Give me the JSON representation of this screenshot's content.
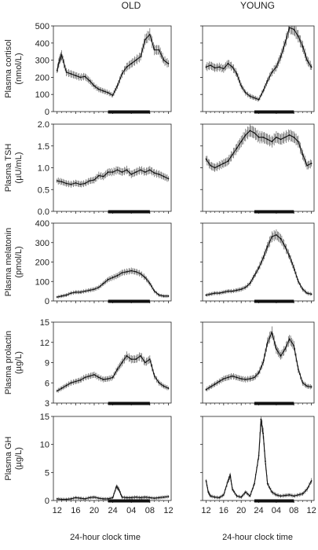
{
  "columns": [
    "OLD",
    "YOUNG"
  ],
  "xlabel": "24-hour clock time",
  "x_ticks": [
    "12",
    "16",
    "20",
    "24",
    "04",
    "08",
    "12"
  ],
  "x_tick_hours": [
    12,
    16,
    20,
    24,
    28,
    32,
    36
  ],
  "sleep_period": [
    23,
    32
  ],
  "chart_data": [
    {
      "type": "line",
      "column": "OLD",
      "ylabel": [
        "Plasma cortisol",
        "(nmol/L)"
      ],
      "ylim": [
        0,
        500
      ],
      "yticks": [
        0,
        100,
        200,
        300,
        400,
        500
      ],
      "ytick_labels": [
        "0",
        "100",
        "200",
        "300",
        "400",
        "500"
      ],
      "x": [
        12,
        12.5,
        13,
        14,
        15,
        16,
        17,
        18,
        19,
        20,
        21,
        22,
        23,
        24,
        25,
        26,
        27,
        28,
        29,
        30,
        31,
        32,
        33,
        34,
        35,
        36
      ],
      "y": [
        240,
        300,
        330,
        230,
        220,
        210,
        200,
        205,
        180,
        150,
        130,
        120,
        110,
        95,
        150,
        220,
        260,
        280,
        300,
        320,
        420,
        450,
        360,
        360,
        300,
        280
      ]
    },
    {
      "type": "line",
      "column": "YOUNG",
      "ylabel": [
        "Plasma cortisol",
        "(nmol/L)"
      ],
      "ylim": [
        0,
        500
      ],
      "yticks": [
        0,
        100,
        200,
        300,
        400,
        500
      ],
      "ytick_labels": [
        "",
        "",
        "",
        "",
        "",
        ""
      ],
      "x": [
        12,
        13,
        14,
        15,
        16,
        17,
        18,
        19,
        20,
        21,
        22,
        23,
        24,
        25,
        26,
        27,
        28,
        29,
        30,
        31,
        32,
        33,
        34,
        35,
        36
      ],
      "y": [
        260,
        270,
        255,
        260,
        250,
        280,
        260,
        220,
        150,
        110,
        90,
        80,
        70,
        120,
        180,
        230,
        260,
        320,
        400,
        490,
        480,
        440,
        380,
        300,
        260
      ]
    },
    {
      "type": "line",
      "column": "OLD",
      "ylabel": [
        "Plasma TSH",
        "(µU/mL)"
      ],
      "ylim": [
        0,
        2
      ],
      "yticks": [
        0,
        0.5,
        1,
        1.5,
        2
      ],
      "ytick_labels": [
        "0.0",
        "0.5",
        "1.0",
        "1.5",
        "2.0"
      ],
      "x": [
        12,
        13,
        14,
        15,
        16,
        17,
        18,
        19,
        20,
        21,
        22,
        23,
        24,
        25,
        26,
        27,
        28,
        29,
        30,
        31,
        32,
        33,
        34,
        35,
        36
      ],
      "y": [
        0.7,
        0.68,
        0.64,
        0.62,
        0.65,
        0.62,
        0.64,
        0.7,
        0.72,
        0.82,
        0.8,
        0.9,
        0.9,
        0.95,
        0.9,
        0.95,
        0.85,
        0.9,
        0.95,
        0.9,
        0.95,
        0.88,
        0.85,
        0.8,
        0.75
      ]
    },
    {
      "type": "line",
      "column": "YOUNG",
      "ylabel": [
        "Plasma TSH",
        "(µU/mL)"
      ],
      "ylim": [
        0,
        2
      ],
      "yticks": [
        0,
        0.5,
        1,
        1.5,
        2
      ],
      "ytick_labels": [
        "",
        "",
        "",
        "",
        ""
      ],
      "x": [
        12,
        13,
        14,
        15,
        16,
        17,
        18,
        19,
        20,
        21,
        22,
        23,
        24,
        25,
        26,
        27,
        28,
        29,
        30,
        31,
        32,
        33,
        34,
        35,
        36
      ],
      "y": [
        1.2,
        1.05,
        1.0,
        1.05,
        1.1,
        1.15,
        1.3,
        1.45,
        1.6,
        1.75,
        1.85,
        1.8,
        1.7,
        1.7,
        1.65,
        1.6,
        1.7,
        1.65,
        1.7,
        1.75,
        1.7,
        1.6,
        1.3,
        1.05,
        1.1
      ]
    },
    {
      "type": "line",
      "column": "OLD",
      "ylabel": [
        "Plasma melatonin",
        "(pmol/L)"
      ],
      "ylim": [
        0,
        400
      ],
      "yticks": [
        0,
        100,
        200,
        300,
        400
      ],
      "ytick_labels": [
        "0",
        "100",
        "200",
        "300",
        "400"
      ],
      "x": [
        12,
        13,
        14,
        15,
        16,
        17,
        18,
        19,
        20,
        21,
        22,
        23,
        24,
        25,
        26,
        27,
        28,
        29,
        30,
        31,
        32,
        33,
        34,
        35,
        36
      ],
      "y": [
        20,
        25,
        30,
        40,
        45,
        45,
        50,
        55,
        60,
        70,
        90,
        110,
        120,
        130,
        145,
        150,
        155,
        150,
        140,
        120,
        90,
        50,
        30,
        25,
        25
      ]
    },
    {
      "type": "line",
      "column": "YOUNG",
      "ylabel": [
        "Plasma melatonin",
        "(pmol/L)"
      ],
      "ylim": [
        0,
        400
      ],
      "yticks": [
        0,
        100,
        200,
        300,
        400
      ],
      "ytick_labels": [
        "",
        "",
        "",
        "",
        ""
      ],
      "x": [
        12,
        13,
        14,
        15,
        16,
        17,
        18,
        19,
        20,
        21,
        22,
        23,
        24,
        25,
        26,
        27,
        28,
        29,
        30,
        31,
        32,
        33,
        34,
        35,
        36
      ],
      "y": [
        30,
        35,
        40,
        40,
        45,
        50,
        50,
        55,
        60,
        70,
        90,
        130,
        170,
        220,
        280,
        330,
        340,
        320,
        280,
        230,
        170,
        100,
        60,
        40,
        35
      ]
    },
    {
      "type": "line",
      "column": "OLD",
      "ylabel": [
        "Plasma prolactin",
        "(µg/L)"
      ],
      "ylim": [
        3,
        15
      ],
      "yticks": [
        3,
        6,
        9,
        12,
        15
      ],
      "ytick_labels": [
        "3",
        "6",
        "9",
        "12",
        "15"
      ],
      "x": [
        12,
        13,
        14,
        15,
        16,
        17,
        18,
        19,
        20,
        21,
        22,
        23,
        24,
        25,
        26,
        27,
        28,
        29,
        30,
        31,
        32,
        33,
        34,
        35,
        36
      ],
      "y": [
        4.8,
        5.2,
        5.6,
        6.0,
        6.2,
        6.4,
        6.8,
        7.0,
        7.2,
        6.8,
        6.5,
        6.6,
        6.8,
        8.0,
        9.0,
        10.0,
        9.5,
        9.5,
        10.0,
        9.0,
        9.5,
        7.0,
        6.0,
        5.5,
        5.2
      ]
    },
    {
      "type": "line",
      "column": "YOUNG",
      "ylabel": [
        "Plasma prolactin",
        "(µg/L)"
      ],
      "ylim": [
        3,
        15
      ],
      "yticks": [
        3,
        6,
        9,
        12,
        15
      ],
      "ytick_labels": [
        "",
        "",
        "",
        "",
        ""
      ],
      "x": [
        12,
        13,
        14,
        15,
        16,
        17,
        18,
        19,
        20,
        21,
        22,
        23,
        24,
        25,
        26,
        27,
        28,
        29,
        30,
        31,
        32,
        33,
        34,
        35,
        36
      ],
      "y": [
        5.0,
        5.4,
        5.8,
        6.2,
        6.6,
        6.8,
        7.0,
        6.8,
        6.6,
        6.5,
        6.6,
        6.8,
        7.5,
        9.0,
        12.0,
        13.5,
        11.0,
        10.0,
        11.0,
        12.5,
        11.5,
        8.0,
        6.0,
        5.5,
        5.4
      ]
    },
    {
      "type": "line",
      "column": "OLD",
      "ylabel": [
        "Plasma GH",
        "(µg/L)"
      ],
      "ylim": [
        0,
        15
      ],
      "yticks": [
        0,
        5,
        10,
        15
      ],
      "ytick_labels": [
        "0",
        "5",
        "10",
        "15"
      ],
      "x": [
        12,
        13,
        14,
        15,
        16,
        17,
        18,
        19,
        20,
        21,
        22,
        23,
        24,
        24.8,
        25.3,
        26,
        27,
        28,
        29,
        30,
        31,
        32,
        33,
        34,
        35,
        36
      ],
      "y": [
        0.3,
        0.2,
        0.2,
        0.3,
        0.5,
        0.4,
        0.3,
        0.5,
        0.6,
        0.4,
        0.3,
        0.3,
        0.5,
        2.5,
        2.0,
        0.6,
        0.5,
        0.5,
        0.6,
        0.5,
        0.6,
        0.5,
        0.4,
        0.5,
        0.6,
        0.7
      ]
    },
    {
      "type": "line",
      "column": "YOUNG",
      "ylabel": [
        "Plasma GH",
        "(µg/L)"
      ],
      "ylim": [
        0,
        15
      ],
      "yticks": [
        0,
        5,
        10,
        15
      ],
      "ytick_labels": [
        "",
        "",
        "",
        ""
      ],
      "x": [
        12,
        12.5,
        13,
        14,
        15,
        16,
        17,
        17.5,
        18,
        19,
        20,
        21,
        22,
        23,
        24,
        24.5,
        25,
        25.5,
        26,
        27,
        28,
        29,
        30,
        31,
        32,
        33,
        34,
        35,
        36
      ],
      "y": [
        3.5,
        1.5,
        0.8,
        0.6,
        0.5,
        1.0,
        3.5,
        4.5,
        2.0,
        0.8,
        0.6,
        1.5,
        0.8,
        3.0,
        8.0,
        14.5,
        12.0,
        7.0,
        3.0,
        1.5,
        1.0,
        0.8,
        0.9,
        1.0,
        0.8,
        1.0,
        1.2,
        2.0,
        3.5
      ]
    }
  ]
}
